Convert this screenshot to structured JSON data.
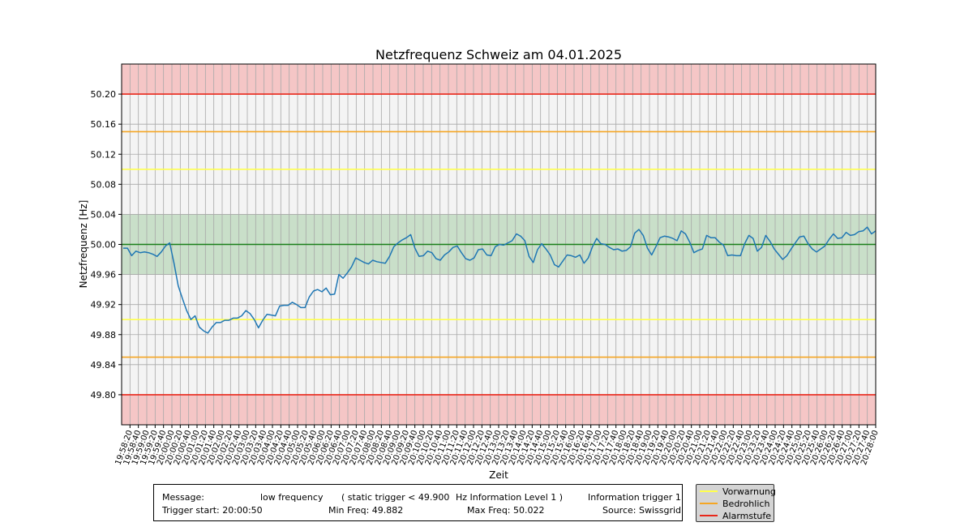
{
  "chart_data": {
    "type": "line",
    "title": "Netzfrequenz Schweiz am 04.01.2025",
    "xlabel": "Zeit",
    "ylabel": "Netzfrequenz [Hz]",
    "ylim": [
      49.76,
      50.24
    ],
    "yticks": [
      "49.80",
      "49.84",
      "49.88",
      "49.92",
      "49.96",
      "50.00",
      "50.04",
      "50.08",
      "50.12",
      "50.16",
      "50.20"
    ],
    "xticks": [
      "19:58:20",
      "19:58:40",
      "19:59:00",
      "19:59:20",
      "19:59:40",
      "20:00:00",
      "20:00:20",
      "20:00:40",
      "20:01:00",
      "20:01:20",
      "20:01:40",
      "20:02:00",
      "20:02:20",
      "20:02:40",
      "20:03:00",
      "20:03:20",
      "20:03:40",
      "20:04:00",
      "20:04:20",
      "20:04:40",
      "20:05:00",
      "20:05:20",
      "20:05:40",
      "20:06:00",
      "20:06:20",
      "20:06:40",
      "20:07:00",
      "20:07:20",
      "20:07:40",
      "20:08:00",
      "20:08:20",
      "20:08:40",
      "20:09:00",
      "20:09:20",
      "20:09:40",
      "20:10:00",
      "20:10:20",
      "20:10:40",
      "20:11:00",
      "20:11:20",
      "20:11:40",
      "20:12:00",
      "20:12:20",
      "20:12:40",
      "20:13:00",
      "20:13:20",
      "20:13:40",
      "20:14:00",
      "20:14:20",
      "20:14:40",
      "20:15:00",
      "20:15:20",
      "20:15:40",
      "20:16:00",
      "20:16:20",
      "20:16:40",
      "20:17:00",
      "20:17:20",
      "20:17:40",
      "20:18:00",
      "20:18:20",
      "20:18:40",
      "20:19:00",
      "20:19:20",
      "20:19:40",
      "20:20:00",
      "20:20:20",
      "20:20:40",
      "20:21:00",
      "20:21:20",
      "20:21:40",
      "20:22:00",
      "20:22:20",
      "20:22:40",
      "20:23:00",
      "20:23:20",
      "20:23:40",
      "20:24:00",
      "20:24:20",
      "20:24:40",
      "20:25:00",
      "20:25:20",
      "20:25:40",
      "20:26:00",
      "20:26:20",
      "20:26:40",
      "20:27:00",
      "20:27:20",
      "20:27:40",
      "20:28:00"
    ],
    "series": [
      {
        "color": "#1f77b4",
        "values": [
          49.995,
          49.995,
          49.985,
          49.991,
          49.989,
          49.99,
          49.989,
          49.987,
          49.984,
          49.99,
          49.998,
          50.002,
          49.975,
          49.945,
          49.928,
          49.912,
          49.9,
          49.905,
          49.89,
          49.885,
          49.882,
          49.89,
          49.896,
          49.896,
          49.899,
          49.899,
          49.902,
          49.902,
          49.905,
          49.912,
          49.908,
          49.9,
          49.889,
          49.899,
          49.907,
          49.906,
          49.905,
          49.918,
          49.919,
          49.919,
          49.923,
          49.92,
          49.916,
          49.916,
          49.93,
          49.938,
          49.94,
          49.937,
          49.942,
          49.933,
          49.934,
          49.96,
          49.955,
          49.962,
          49.97,
          49.982,
          49.979,
          49.976,
          49.974,
          49.979,
          49.977,
          49.976,
          49.975,
          49.984,
          49.997,
          50.002,
          50.006,
          50.009,
          50.013,
          49.995,
          49.984,
          49.985,
          49.991,
          49.989,
          49.981,
          49.979,
          49.986,
          49.99,
          49.996,
          49.998,
          49.989,
          49.981,
          49.979,
          49.982,
          49.993,
          49.994,
          49.986,
          49.985,
          49.997,
          50.0,
          49.999,
          50.002,
          50.005,
          50.014,
          50.011,
          50.005,
          49.984,
          49.976,
          49.993,
          50.001,
          49.994,
          49.986,
          49.973,
          49.97,
          49.978,
          49.986,
          49.985,
          49.983,
          49.986,
          49.975,
          49.982,
          49.997,
          50.008,
          50.001,
          50.0,
          49.996,
          49.993,
          49.994,
          49.991,
          49.992,
          49.997,
          50.015,
          50.02,
          50.012,
          49.995,
          49.986,
          49.997,
          50.009,
          50.011,
          50.01,
          50.008,
          50.005,
          50.018,
          50.014,
          50.003,
          49.989,
          49.992,
          49.994,
          50.012,
          50.009,
          50.009,
          50.003,
          49.999,
          49.985,
          49.986,
          49.985,
          49.985,
          50.001,
          50.012,
          50.008,
          49.991,
          49.996,
          50.012,
          50.004,
          49.994,
          49.987,
          49.98,
          49.985,
          49.994,
          50.002,
          50.01,
          50.011,
          50.001,
          49.994,
          49.99,
          49.994,
          49.998,
          50.007,
          50.014,
          50.008,
          50.009,
          50.016,
          50.012,
          50.013,
          50.017,
          50.018,
          50.023,
          50.014,
          50.018
        ]
      }
    ],
    "bands": [
      {
        "from": 50.2,
        "to": 50.24,
        "color": "#f5c6c6"
      },
      {
        "from": 49.96,
        "to": 50.04,
        "color": "#c9dfc9"
      },
      {
        "from": 49.76,
        "to": 49.8,
        "color": "#f5c6c6"
      }
    ],
    "reference_lines": [
      {
        "y": 50.2,
        "color": "#e8271a"
      },
      {
        "y": 50.15,
        "color": "#f5a623"
      },
      {
        "y": 50.1,
        "color": "#ffff4d"
      },
      {
        "y": 50.0,
        "color": "#1a7f1a"
      },
      {
        "y": 49.9,
        "color": "#ffff4d"
      },
      {
        "y": 49.85,
        "color": "#f5a623"
      },
      {
        "y": 49.8,
        "color": "#e8271a"
      }
    ],
    "grid": true
  },
  "info": {
    "message_label": "Message:",
    "message_value": "low frequency",
    "trigger_text": "( static trigger < 49.900",
    "level_text": "Hz Information Level 1 )",
    "trigger_type": "Information trigger 1",
    "trigger_start": "Trigger start: 20:00:50",
    "min_freq": "Min Freq: 49.882",
    "max_freq": "Max Freq: 50.022",
    "source": "Source: Swissgrid"
  },
  "legend": [
    {
      "label": "Vorwarnung",
      "color": "#ffff4d"
    },
    {
      "label": "Bedrohlich",
      "color": "#f5a623"
    },
    {
      "label": "Alarmstufe",
      "color": "#e8271a"
    }
  ]
}
